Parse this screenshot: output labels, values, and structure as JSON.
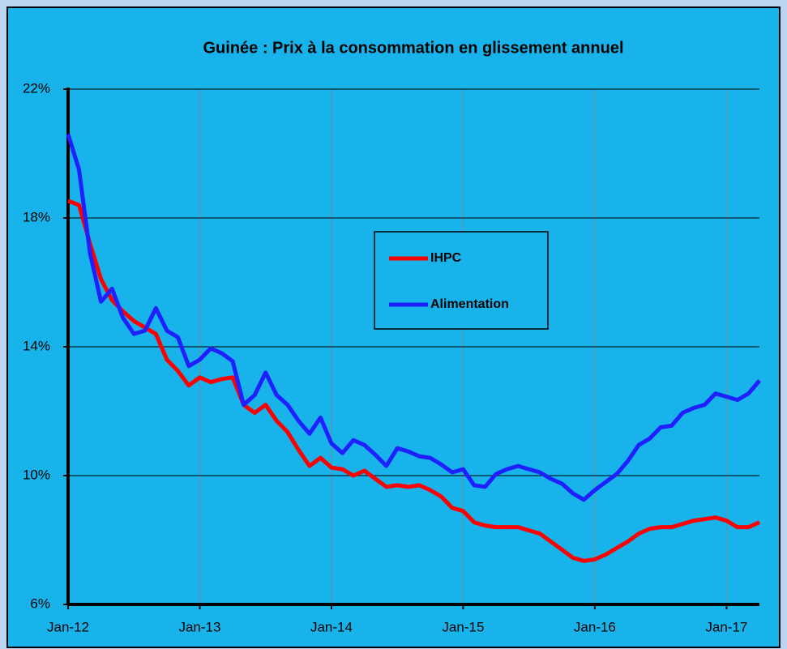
{
  "chart_data": {
    "type": "line",
    "title": "Guinée : Prix à la consommation en glissement annuel",
    "categories": [
      "Jan-12",
      null,
      null,
      null,
      null,
      null,
      null,
      null,
      null,
      null,
      null,
      null,
      "Jan-13",
      null,
      null,
      null,
      null,
      null,
      null,
      null,
      null,
      null,
      null,
      null,
      "Jan-14",
      null,
      null,
      null,
      null,
      null,
      null,
      null,
      null,
      null,
      null,
      null,
      "Jan-15",
      null,
      null,
      null,
      null,
      null,
      null,
      null,
      null,
      null,
      null,
      null,
      "Jan-16",
      null,
      null,
      null,
      null,
      null,
      null,
      null,
      null,
      null,
      null,
      null,
      "Jan-17",
      null,
      null,
      null
    ],
    "series": [
      {
        "name": "IHPC",
        "color": "#ff0000",
        "values": [
          18.53,
          18.4,
          17.2,
          16.1,
          15.45,
          15.1,
          14.8,
          14.6,
          14.4,
          13.6,
          13.25,
          12.8,
          13.05,
          12.9,
          13.0,
          13.05,
          12.2,
          11.95,
          12.2,
          11.7,
          11.35,
          10.8,
          10.3,
          10.55,
          10.25,
          10.2,
          10.0,
          10.15,
          9.9,
          9.65,
          9.7,
          9.65,
          9.7,
          9.55,
          9.35,
          9.0,
          8.9,
          8.55,
          8.45,
          8.4,
          8.4,
          8.4,
          8.3,
          8.2,
          7.95,
          7.7,
          7.45,
          7.35,
          7.4,
          7.55,
          7.75,
          7.95,
          8.2,
          8.35,
          8.4,
          8.4,
          8.5,
          8.6,
          8.65,
          8.7,
          8.6,
          8.4,
          8.4,
          8.55
        ]
      },
      {
        "name": "Alimentation",
        "color": "#1f1fff",
        "values": [
          20.6,
          19.5,
          16.9,
          15.4,
          15.8,
          14.9,
          14.4,
          14.5,
          15.2,
          14.5,
          14.3,
          13.4,
          13.6,
          13.95,
          13.8,
          13.55,
          12.2,
          12.5,
          13.2,
          12.5,
          12.2,
          11.7,
          11.3,
          11.8,
          11.0,
          10.7,
          11.1,
          10.95,
          10.65,
          10.3,
          10.85,
          10.75,
          10.6,
          10.55,
          10.35,
          10.1,
          10.2,
          9.7,
          9.65,
          10.05,
          10.2,
          10.3,
          10.2,
          10.1,
          9.9,
          9.75,
          9.45,
          9.25,
          9.55,
          9.8,
          10.05,
          10.45,
          10.95,
          11.15,
          11.5,
          11.55,
          11.95,
          12.1,
          12.2,
          12.55,
          12.45,
          12.35,
          12.55,
          12.95
        ]
      }
    ],
    "ylim": [
      6,
      22
    ],
    "yticks": [
      {
        "value": 6,
        "label": "6%"
      },
      {
        "value": 10,
        "label": "10%"
      },
      {
        "value": 14,
        "label": "14%"
      },
      {
        "value": 18,
        "label": "18%"
      },
      {
        "value": 22,
        "label": "22%"
      }
    ],
    "grid": true
  }
}
